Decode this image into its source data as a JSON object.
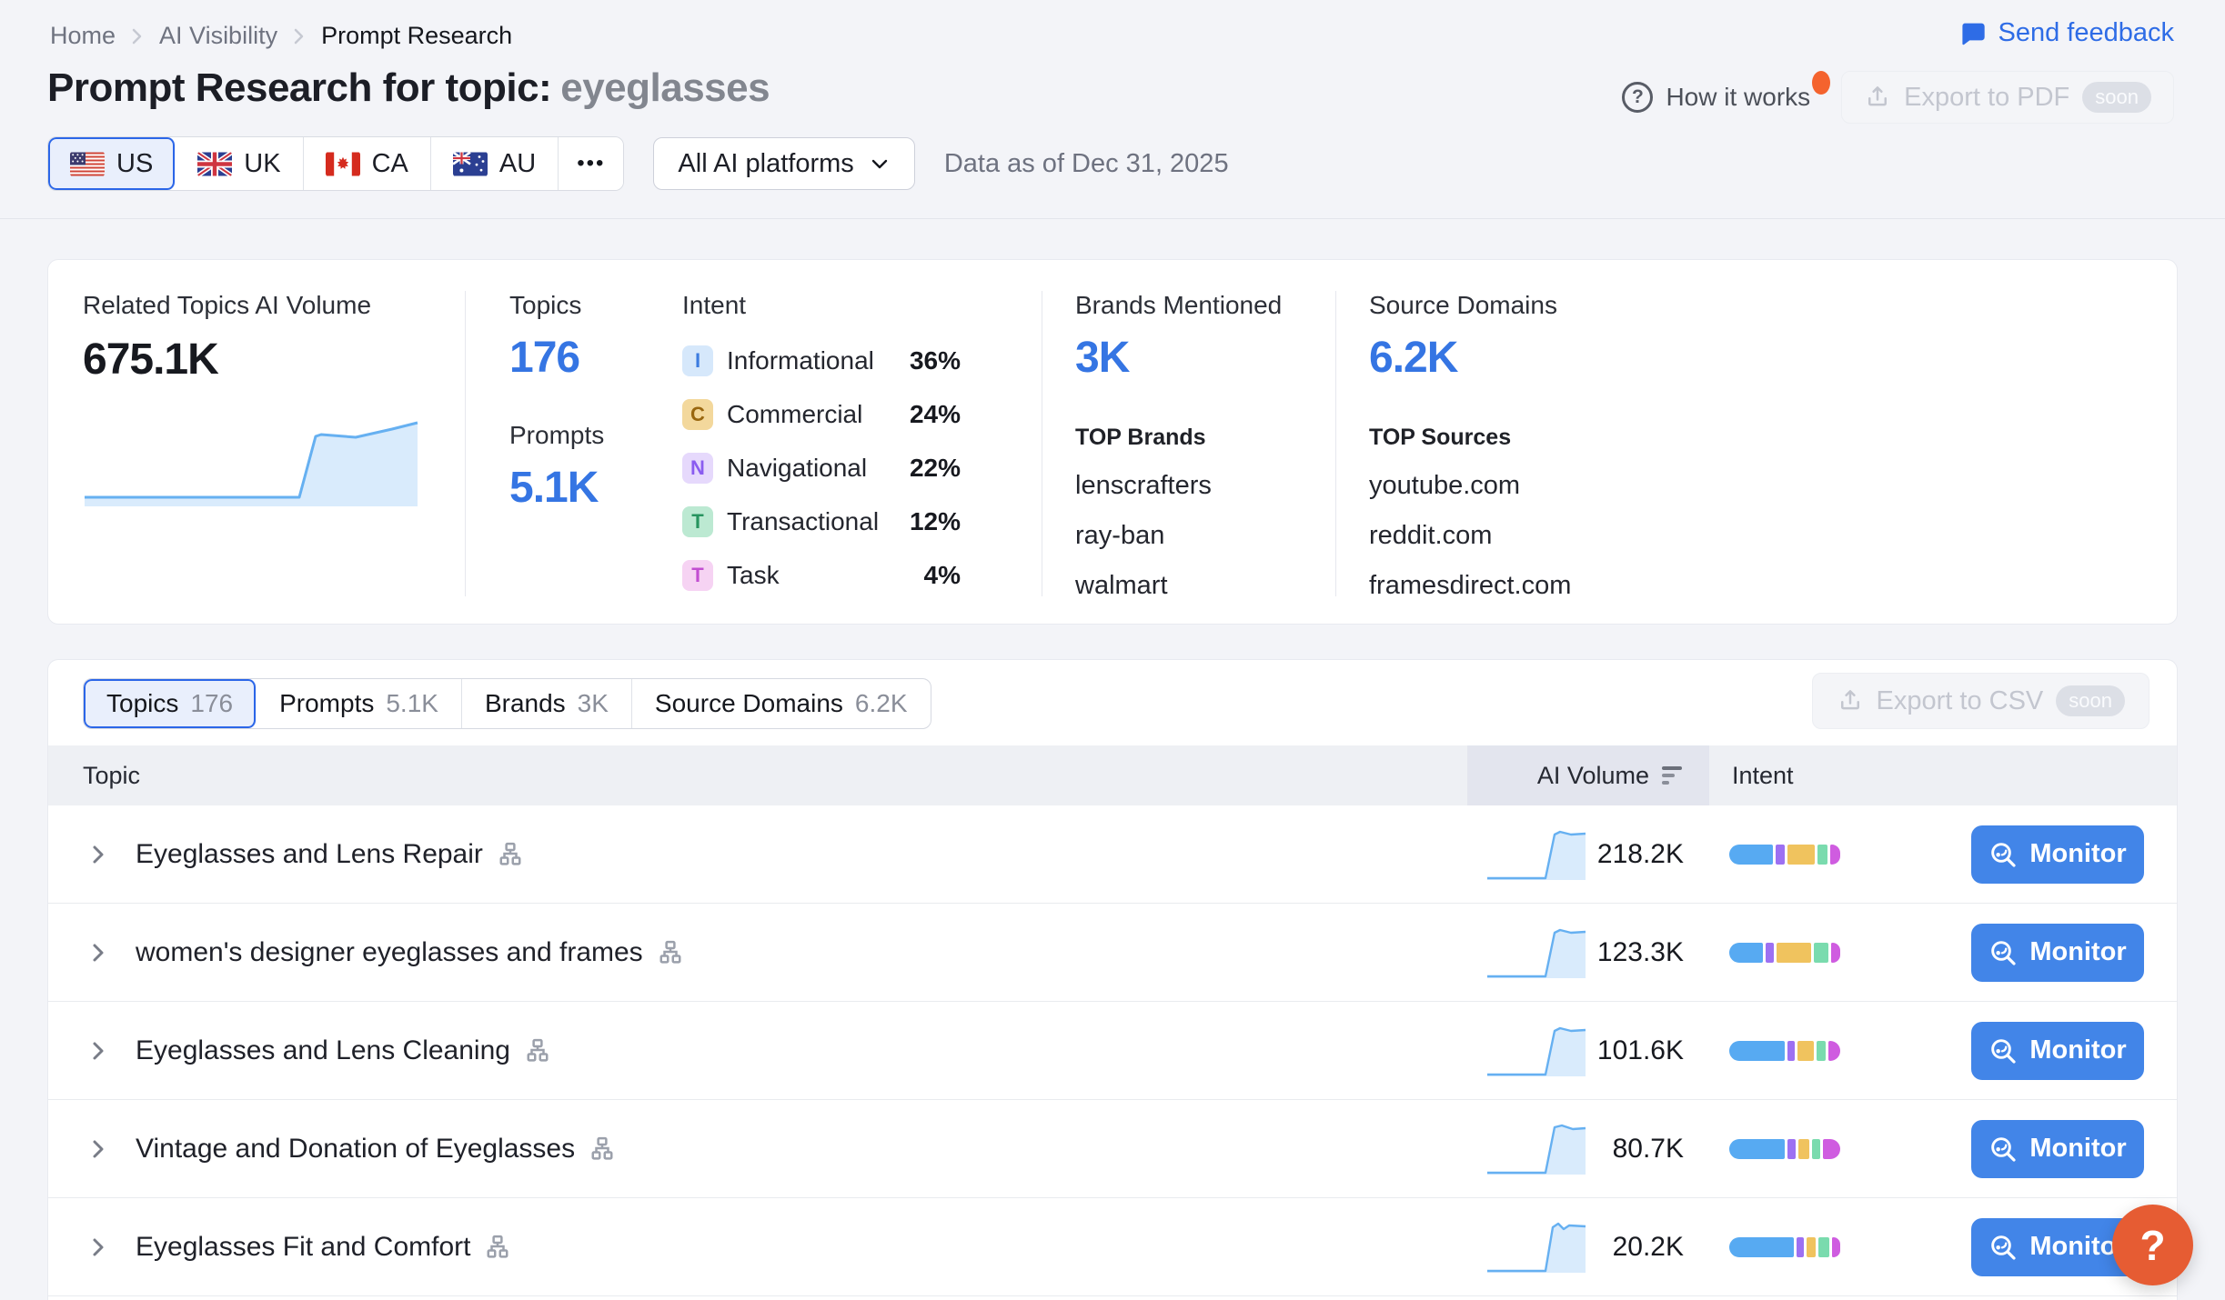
{
  "breadcrumb": {
    "items": [
      "Home",
      "AI Visibility",
      "Prompt Research"
    ]
  },
  "topbar": {
    "send_feedback": "Send feedback"
  },
  "header": {
    "title_prefix": "Prompt Research for topic:",
    "topic": "eyeglasses",
    "how_it_works": "How it works",
    "export_pdf": "Export to PDF",
    "export_csv": "Export to CSV",
    "soon": "soon"
  },
  "filters": {
    "countries": [
      "US",
      "UK",
      "CA",
      "AU"
    ],
    "more": "•••",
    "platform": "All AI platforms",
    "data_as_of": "Data as of Dec 31, 2025"
  },
  "overview": {
    "related": {
      "label": "Related Topics AI Volume",
      "value": "675.1K"
    },
    "topics_label": "Topics",
    "topics_value": "176",
    "prompts_label": "Prompts",
    "prompts_value": "5.1K",
    "intent_label": "Intent",
    "intent_items": [
      {
        "badge": "I",
        "name": "Informational",
        "pct": "36%",
        "bg": "#d6e8fb",
        "fg": "#3c7ce0"
      },
      {
        "badge": "C",
        "name": "Commercial",
        "pct": "24%",
        "bg": "#f3d89c",
        "fg": "#99660f"
      },
      {
        "badge": "N",
        "name": "Navigational",
        "pct": "22%",
        "bg": "#e6d9fc",
        "fg": "#8a5cf0"
      },
      {
        "badge": "T",
        "name": "Transactional",
        "pct": "12%",
        "bg": "#bce9d2",
        "fg": "#27945f"
      },
      {
        "badge": "T",
        "name": "Task",
        "pct": "4%",
        "bg": "#f6d3f3",
        "fg": "#c24ed1"
      }
    ],
    "brands": {
      "label": "Brands Mentioned",
      "value": "3K",
      "top_label": "TOP Brands",
      "items": [
        "lenscrafters",
        "ray-ban",
        "walmart"
      ]
    },
    "sources": {
      "label": "Source Domains",
      "value": "6.2K",
      "top_label": "TOP Sources",
      "items": [
        "youtube.com",
        "reddit.com",
        "framesdirect.com"
      ]
    }
  },
  "tabs": [
    {
      "label": "Topics",
      "count": "176"
    },
    {
      "label": "Prompts",
      "count": "5.1K"
    },
    {
      "label": "Brands",
      "count": "3K"
    },
    {
      "label": "Source Domains",
      "count": "6.2K"
    }
  ],
  "table": {
    "col_topic": "Topic",
    "col_volume": "AI Volume",
    "col_intent": "Intent",
    "monitor": "Monitor",
    "rows": [
      {
        "topic": "Eyeglasses and Lens Repair",
        "volume": "218.2K",
        "intent_bar": [
          44,
          9,
          27,
          10,
          10
        ]
      },
      {
        "topic": "women's designer eyeglasses and frames",
        "volume": "123.3K",
        "intent_bar": [
          34,
          8,
          34,
          15,
          9
        ]
      },
      {
        "topic": "Eyeglasses and Lens Cleaning",
        "volume": "101.6K",
        "intent_bar": [
          55,
          8,
          16,
          9,
          12
        ]
      },
      {
        "topic": "Vintage and Donation of Eyeglasses",
        "volume": "80.7K",
        "intent_bar": [
          52,
          8,
          10,
          8,
          16
        ]
      },
      {
        "topic": "Eyeglasses Fit and Comfort",
        "volume": "20.2K",
        "intent_bar": [
          62,
          7,
          9,
          10,
          8
        ]
      }
    ]
  },
  "fab": {
    "label": "?"
  },
  "icons": {
    "question": "?"
  },
  "colors": {
    "accent_blue": "#2e6ce6",
    "stat_blue": "#3575e3",
    "monitor_blue": "#4285e8",
    "selected_bg": "#e9effc",
    "fab_orange": "#e65c33",
    "notification_orange": "#f4632e",
    "sparkline_line": "#66b0f1",
    "sparkline_fill": "#d9ebfc",
    "intent_segments": [
      "#57aaf2",
      "#9d70f2",
      "#f0c35e",
      "#7adbae",
      "#cf5ce0"
    ]
  }
}
